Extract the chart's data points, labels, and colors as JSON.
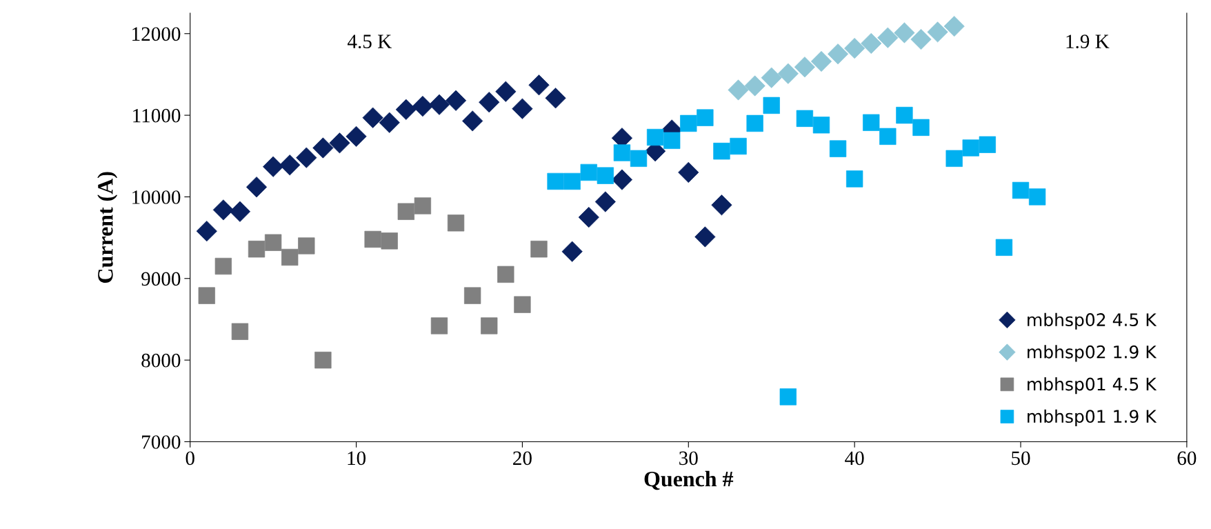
{
  "chart_data": {
    "type": "scatter",
    "xlabel": "Quench #",
    "ylabel": "Current (A)",
    "xlim": [
      0,
      60
    ],
    "xticks": [
      0,
      10,
      20,
      30,
      40,
      50,
      60
    ],
    "ylim": [
      7000,
      12250
    ],
    "yticks": [
      7000,
      8000,
      9000,
      10000,
      11000,
      12000
    ],
    "grid": false,
    "legend": "bottom right",
    "annotations": [
      "4.5 K",
      "1.9 K"
    ],
    "series": [
      {
        "name": "mbhsp02 4.5 K",
        "color": "#0a2160",
        "marker": "diamond",
        "x": [
          1,
          2,
          3,
          4,
          5,
          6,
          7,
          8,
          9,
          10,
          11,
          12,
          13,
          14,
          15,
          16,
          17,
          18,
          19,
          20,
          21,
          22,
          23,
          24,
          25,
          26,
          26,
          28,
          29,
          30,
          31,
          32
        ],
        "values": [
          9580,
          9840,
          9820,
          10120,
          10370,
          10390,
          10480,
          10600,
          10660,
          10740,
          10970,
          10910,
          11070,
          11110,
          11130,
          11180,
          10930,
          11160,
          11290,
          11080,
          11370,
          11210,
          9330,
          9750,
          9940,
          10720,
          10210,
          10560,
          10820,
          10300,
          9510,
          9900
        ]
      },
      {
        "name": "mbhsp02 1.9 K",
        "color": "#8fc6d6",
        "marker": "diamond",
        "x": [
          33,
          34,
          35,
          36,
          37,
          38,
          39,
          40,
          41,
          42,
          43,
          44,
          45,
          46
        ],
        "values": [
          11310,
          11360,
          11460,
          11510,
          11590,
          11660,
          11750,
          11820,
          11880,
          11950,
          12010,
          11930,
          12020,
          12090
        ]
      },
      {
        "name": "mbhsp01 4.5 K",
        "color": "#808080",
        "marker": "square",
        "x": [
          1,
          2,
          3,
          4,
          5,
          6,
          7,
          8,
          11,
          12,
          13,
          14,
          15,
          16,
          17,
          18,
          19,
          20,
          21
        ],
        "values": [
          8790,
          9150,
          8350,
          9360,
          9440,
          9260,
          9400,
          8000,
          9480,
          9460,
          9820,
          9890,
          8420,
          9680,
          8790,
          8420,
          9050,
          8680,
          9360
        ]
      },
      {
        "name": "mbhsp01 1.9 K",
        "color": "#00b0f0",
        "marker": "square",
        "x": [
          22,
          23,
          24,
          25,
          26,
          27,
          28,
          29,
          30,
          31,
          32,
          33,
          34,
          35,
          36,
          37,
          38,
          39,
          40,
          41,
          42,
          43,
          44,
          46,
          47,
          48,
          49,
          50,
          51
        ],
        "values": [
          10190,
          10190,
          10300,
          10260,
          10540,
          10470,
          10730,
          10690,
          10900,
          10970,
          10560,
          10620,
          10900,
          11120,
          7550,
          10960,
          10880,
          10590,
          10220,
          10910,
          10740,
          11000,
          10850,
          10470,
          10600,
          10640,
          9380,
          10080,
          10000
        ]
      }
    ]
  }
}
